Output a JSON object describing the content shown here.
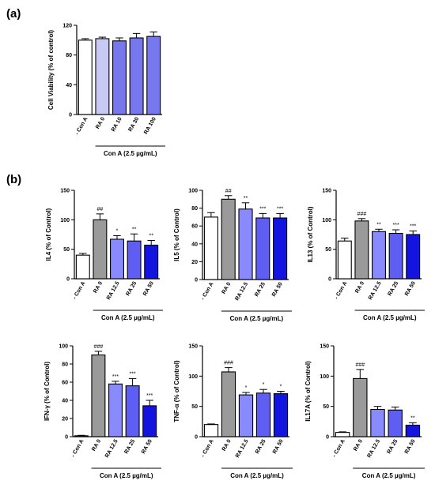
{
  "panel_labels": [
    "(a)",
    "(b)"
  ],
  "colors": {
    "con_a_neg": "#ffffff",
    "ra0_a": "#c9c9f5",
    "ra_a": "#7777ee",
    "ra0_b": "#9a9a9a",
    "ra_light": "#8a8aff",
    "ra_mid": "#5e5ef2",
    "ra_dark": "#1414e0"
  },
  "chart_data": [
    {
      "type": "bar",
      "categories": [
        "- Con A",
        "RA 0",
        "RA 10",
        "RA 30",
        "RA 100"
      ],
      "values": [
        100,
        102,
        99,
        103,
        105
      ],
      "errors": [
        2,
        2,
        4,
        6,
        6
      ],
      "significance": [
        "",
        "",
        "",
        "",
        ""
      ],
      "ylabel": "Cell Viability (% of control)",
      "ylim": [
        0,
        120
      ],
      "yticks": [
        0,
        40,
        80,
        120
      ],
      "group_label": "Con A (2.5 µg/mL)",
      "group_start": 1
    },
    {
      "type": "bar",
      "categories": [
        "- Con A",
        "RA 0",
        "RA 12.5",
        "RA 25",
        "RA 50"
      ],
      "values": [
        40,
        100,
        67,
        64,
        57
      ],
      "errors": [
        3,
        10,
        6,
        12,
        8
      ],
      "significance": [
        "",
        "##",
        "*",
        "**",
        "**"
      ],
      "ylabel": "IL4 (% of Control)",
      "ylim": [
        0,
        150
      ],
      "yticks": [
        0,
        50,
        100,
        150
      ],
      "group_label": "Con A (2.5 µg/mL)",
      "group_start": 1
    },
    {
      "type": "bar",
      "categories": [
        "- Con A",
        "RA 0",
        "RA 12.5",
        "RA 25",
        "RA 50"
      ],
      "values": [
        70,
        90,
        79,
        69,
        69
      ],
      "errors": [
        5,
        4,
        7,
        5,
        5
      ],
      "significance": [
        "",
        "##",
        "**",
        "***",
        "***"
      ],
      "ylabel": "IL5 (% of  Control)",
      "ylim": [
        0,
        100
      ],
      "yticks": [
        0,
        20,
        40,
        60,
        80,
        100
      ],
      "group_label": "Con A (2.5 µg/mL)",
      "group_start": 1
    },
    {
      "type": "bar",
      "categories": [
        "- Con A",
        "RA 0",
        "RA 12.5",
        "RA 25",
        "RA 50"
      ],
      "values": [
        64,
        98,
        80,
        77,
        75
      ],
      "errors": [
        5,
        4,
        4,
        6,
        6
      ],
      "significance": [
        "",
        "###",
        "**",
        "***",
        "***"
      ],
      "ylabel": "IL13 (% of Control)",
      "ylim": [
        0,
        150
      ],
      "yticks": [
        0,
        50,
        100,
        150
      ],
      "group_label": "Con A (2.5 µg/mL)",
      "group_start": 1
    },
    {
      "type": "bar",
      "categories": [
        "- Con A",
        "RA 0",
        "RA 12.5",
        "RA 25",
        "RA 50"
      ],
      "values": [
        1,
        90,
        58,
        56,
        34
      ],
      "errors": [
        0.5,
        4,
        3,
        8,
        6
      ],
      "significance": [
        "",
        "###",
        "***",
        "***",
        "***"
      ],
      "ylabel": "IFN-γ (% of Control)",
      "ylim": [
        0,
        100
      ],
      "yticks": [
        0,
        20,
        40,
        60,
        80,
        100
      ],
      "group_label": "Con A (2.5 µg/mL)",
      "group_start": 1
    },
    {
      "type": "bar",
      "categories": [
        "- Con A",
        "RA 0",
        "RA 12.5",
        "RA 25",
        "RA 50"
      ],
      "values": [
        20,
        107,
        69,
        72,
        71
      ],
      "errors": [
        1,
        7,
        4,
        6,
        4
      ],
      "significance": [
        "",
        "###",
        "*",
        "*",
        "*"
      ],
      "ylabel": "TNF-α (% of Control)",
      "ylim": [
        0,
        150
      ],
      "yticks": [
        0,
        50,
        100,
        150
      ],
      "group_label": "Con A (2.5 µg/mL)",
      "group_start": 1
    },
    {
      "type": "bar",
      "categories": [
        "- Con A",
        "RA 0",
        "RA 12.5",
        "RA 25",
        "RA 50"
      ],
      "values": [
        7,
        96,
        45,
        44,
        19
      ],
      "errors": [
        1,
        15,
        5,
        5,
        4
      ],
      "significance": [
        "",
        "###",
        "",
        "",
        "**"
      ],
      "ylabel": "IL17A (% of Control)",
      "ylim": [
        0,
        150
      ],
      "yticks": [
        0,
        50,
        100,
        150
      ],
      "group_label": "Con A (2.5 µg/mL)",
      "group_start": 1
    }
  ]
}
